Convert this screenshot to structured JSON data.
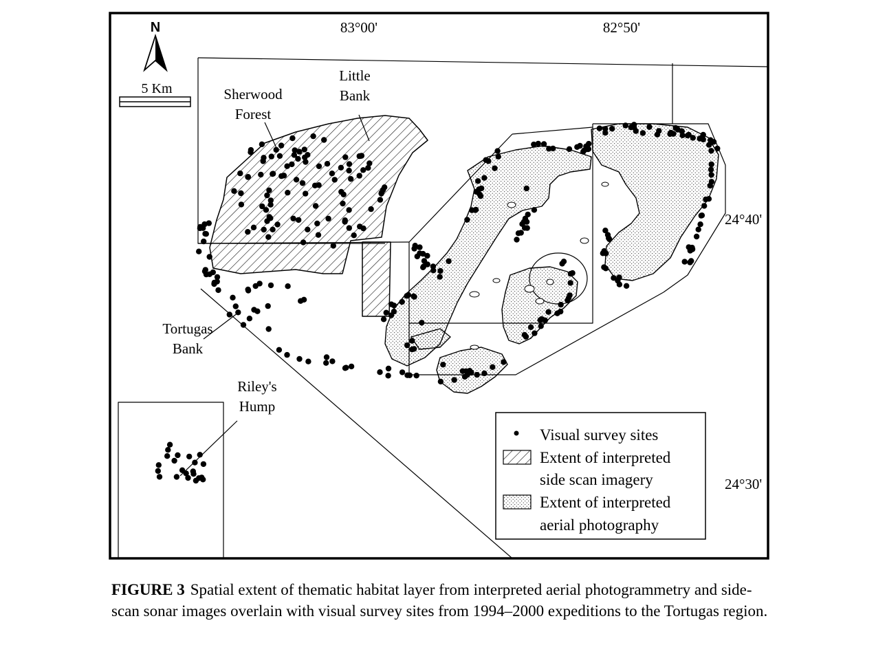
{
  "map": {
    "north_label": "N",
    "scale_label": "5 Km",
    "longitude_labels": [
      "83°00'",
      "82°50'"
    ],
    "latitude_labels": [
      "24°40'",
      "24°30'"
    ],
    "place_labels": {
      "sherwood_forest": [
        "Sherwood",
        "Forest"
      ],
      "little_bank": [
        "Little",
        "Bank"
      ],
      "tortugas_bank": [
        "Tortugas",
        "Bank"
      ],
      "rileys_hump": [
        "Riley's",
        "Hump"
      ]
    },
    "legend": {
      "survey_sites": "Visual survey sites",
      "side_scan_line1": "Extent of interpreted",
      "side_scan_line2": "side scan imagery",
      "aerial_line1": "Extent  of interpreted",
      "aerial_line2": "aerial photography"
    },
    "colors": {
      "ink": "#000000",
      "background": "#ffffff"
    }
  },
  "caption": {
    "label": "FIGURE 3",
    "text": "Spatial extent of thematic habitat layer from interpreted aerial photogrammetry and side-scan sonar images overlain with visual survey sites from 1994–2000 expeditions to the Tortugas region."
  }
}
